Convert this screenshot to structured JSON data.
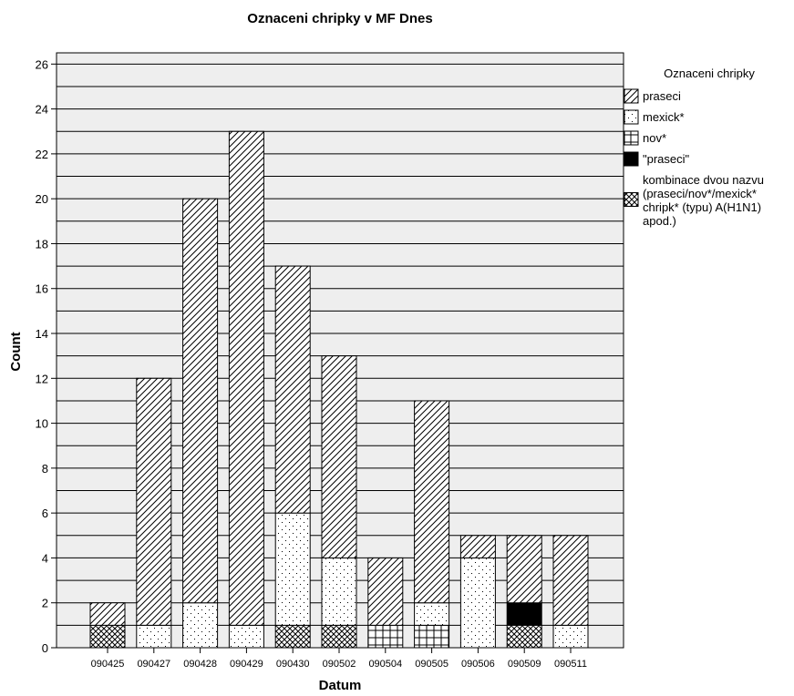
{
  "chart_data": {
    "type": "bar",
    "stacked": true,
    "title": "Oznaceni chripky v MF Dnes",
    "xlabel": "Datum",
    "ylabel": "Count",
    "ylim": [
      0,
      26.5
    ],
    "yticks": [
      0,
      2,
      4,
      6,
      8,
      10,
      12,
      14,
      16,
      18,
      20,
      22,
      24,
      26
    ],
    "grid": true,
    "legend_title": "Oznaceni chripky",
    "legend_position": "right",
    "categories": [
      "090425",
      "090427",
      "090428",
      "090429",
      "090430",
      "090502",
      "090504",
      "090505",
      "090506",
      "090509",
      "090511"
    ],
    "series": [
      {
        "name": "kombinace dvou nazvu (praseci/nov*/mexick* chripk* (typu) A(H1N1) apod.)",
        "pattern": "crosshatch-diagonal",
        "values": [
          1,
          0,
          0,
          0,
          1,
          1,
          0,
          0,
          0,
          1,
          0
        ]
      },
      {
        "name": "\"praseci\"",
        "pattern": "solid-black",
        "values": [
          0,
          0,
          0,
          0,
          0,
          0,
          0,
          0,
          0,
          1,
          0
        ]
      },
      {
        "name": "nov*",
        "pattern": "grid",
        "values": [
          0,
          0,
          0,
          0,
          0,
          0,
          1,
          1,
          0,
          0,
          0
        ]
      },
      {
        "name": "mexick*",
        "pattern": "dots",
        "values": [
          0,
          1,
          2,
          1,
          5,
          3,
          0,
          1,
          4,
          0,
          1
        ]
      },
      {
        "name": "praseci",
        "pattern": "diagonal-lines",
        "values": [
          1,
          11,
          18,
          22,
          11,
          9,
          3,
          9,
          1,
          3,
          4
        ]
      }
    ],
    "legend_order": [
      "praseci",
      "mexick*",
      "nov*",
      "\"praseci\"",
      "kombinace dvou nazvu (praseci/nov*/mexick* chripk* (typu) A(H1N1) apod.)"
    ],
    "legend_label_lines": {
      "kombinace dvou nazvu (praseci/nov*/mexick* chripk* (typu) A(H1N1) apod.)": [
        "kombinace dvou nazvu",
        "(praseci/nov*/mexick*",
        "chripk* (typu) A(H1N1)",
        "apod.)"
      ]
    },
    "colors": {
      "plot_background": "#eeeeee",
      "bar_fill": "#ffffff",
      "ink": "#000000"
    }
  }
}
